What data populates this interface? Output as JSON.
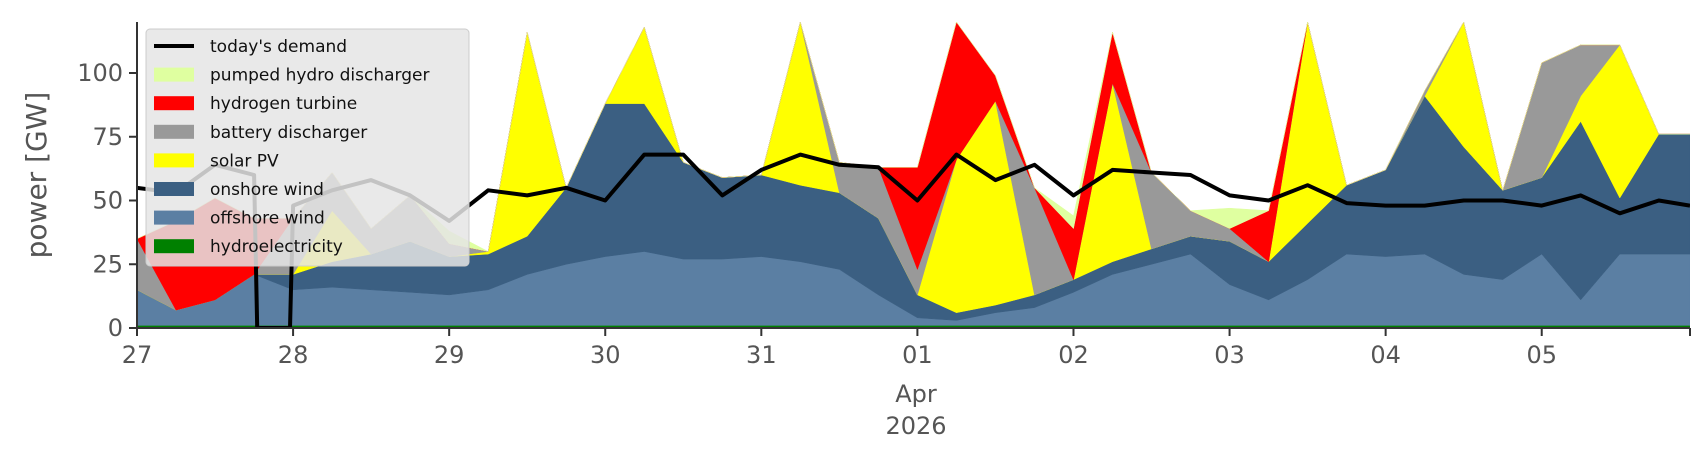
{
  "chart_data": {
    "type": "area",
    "stacked": true,
    "title": "",
    "xlabel": "",
    "ylabel": "power [GW]",
    "ylim": [
      0,
      120
    ],
    "y_ticks": [
      0,
      25,
      50,
      75,
      100
    ],
    "x_range": [
      0,
      9.95
    ],
    "x_ticks": [
      {
        "x": 0,
        "label": "27"
      },
      {
        "x": 1,
        "label": "28"
      },
      {
        "x": 2,
        "label": "29"
      },
      {
        "x": 3,
        "label": "30"
      },
      {
        "x": 4,
        "label": "31"
      },
      {
        "x": 5,
        "label": "01"
      },
      {
        "x": 6,
        "label": "02"
      },
      {
        "x": 7,
        "label": "03"
      },
      {
        "x": 8,
        "label": "04"
      },
      {
        "x": 9,
        "label": "05"
      }
    ],
    "x_tick_sublabels": {
      "month": "Apr",
      "year": "2026",
      "under_tick": "01"
    },
    "grid": false,
    "legend_position": "top-left",
    "x": [
      0,
      0.25,
      0.5,
      0.75,
      1,
      1.25,
      1.5,
      1.75,
      2,
      2.25,
      2.5,
      2.75,
      3,
      3.25,
      3.5,
      3.75,
      4,
      4.25,
      4.5,
      4.75,
      5,
      5.25,
      5.5,
      5.75,
      6,
      6.25,
      6.5,
      6.75,
      7,
      7.25,
      7.5,
      7.75,
      8,
      8.25,
      8.5,
      8.75,
      9,
      9.25,
      9.5,
      9.75,
      9.95
    ],
    "series": [
      {
        "name": "hydroelectricity",
        "color": "#008000",
        "values": [
          1,
          1,
          1,
          1,
          1,
          1,
          1,
          1,
          1,
          1,
          1,
          1,
          1,
          1,
          1,
          1,
          1,
          1,
          1,
          1,
          1,
          1,
          1,
          1,
          1,
          1,
          1,
          1,
          1,
          1,
          1,
          1,
          1,
          1,
          1,
          1,
          1,
          1,
          1,
          1,
          1
        ]
      },
      {
        "name": "offshore wind",
        "color": "#5b7fa3",
        "values": [
          14,
          6,
          10,
          20,
          14,
          15,
          14,
          13,
          12,
          14,
          20,
          24,
          27,
          29,
          26,
          26,
          27,
          25,
          22,
          12,
          3,
          2,
          5,
          7,
          13,
          20,
          24,
          28,
          16,
          10,
          18,
          28,
          27,
          28,
          20,
          18,
          28,
          10,
          28,
          28,
          28
        ]
      },
      {
        "name": "onshore wind",
        "color": "#3b5f82",
        "values": [
          0,
          0,
          0,
          0,
          6,
          10,
          14,
          20,
          15,
          14,
          15,
          30,
          60,
          58,
          38,
          32,
          32,
          30,
          30,
          30,
          9,
          3,
          3,
          5,
          5,
          5,
          6,
          7,
          17,
          15,
          22,
          27,
          34,
          62,
          50,
          35,
          30,
          70,
          22,
          47,
          47
        ]
      },
      {
        "name": "solar PV",
        "color": "#ffff00",
        "values": [
          0,
          0,
          0,
          0,
          0,
          20,
          0,
          0,
          0,
          1,
          80,
          0,
          0,
          30,
          0,
          0,
          0,
          65,
          0,
          0,
          0,
          60,
          80,
          0,
          0,
          70,
          0,
          0,
          0,
          0,
          85,
          0,
          0,
          0,
          60,
          0,
          0,
          10,
          60,
          0,
          0
        ]
      },
      {
        "name": "battery discharger",
        "color": "#999999",
        "values": [
          20,
          0,
          0,
          0,
          22,
          15,
          10,
          18,
          5,
          0,
          0,
          0,
          0,
          0,
          0,
          0,
          0,
          0,
          12,
          20,
          10,
          0,
          0,
          42,
          0,
          0,
          30,
          10,
          5,
          0,
          0,
          0,
          0,
          2,
          0,
          0,
          45,
          20,
          0,
          0,
          0
        ]
      },
      {
        "name": "hydrogen turbine",
        "color": "#ff0000",
        "values": [
          0,
          35,
          40,
          22,
          0,
          0,
          0,
          0,
          0,
          0,
          0,
          0,
          0,
          0,
          0,
          0,
          0,
          0,
          0,
          0,
          40,
          60,
          10,
          0,
          20,
          20,
          0,
          0,
          0,
          20,
          0,
          0,
          0,
          0,
          0,
          0,
          0,
          0,
          0,
          0,
          0
        ]
      },
      {
        "name": "pumped hydro discharger",
        "color": "#dfffa0",
        "values": [
          0,
          0,
          0,
          0,
          0,
          0,
          0,
          0,
          5,
          0,
          0,
          0,
          0,
          0,
          0,
          0,
          0,
          0,
          0,
          0,
          0,
          0,
          0,
          0,
          5,
          0,
          0,
          0,
          8,
          0,
          0,
          0,
          0,
          0,
          0,
          0,
          0,
          0,
          0,
          0,
          0
        ]
      }
    ],
    "demand": {
      "name": "today's demand",
      "color": "#000000",
      "values": [
        55,
        53,
        64,
        60,
        48,
        54,
        58,
        52,
        42,
        54,
        52,
        55,
        50,
        68,
        68,
        52,
        62,
        68,
        64,
        63,
        50,
        68,
        58,
        64,
        52,
        62,
        61,
        60,
        52,
        50,
        56,
        49,
        48,
        48,
        50,
        50,
        48,
        52,
        45,
        50,
        48
      ],
      "gap": {
        "from": 0.75,
        "to": 1.0,
        "value": 0
      }
    },
    "legend": [
      {
        "label": "today's demand",
        "kind": "line",
        "color": "#000000"
      },
      {
        "label": "pumped hydro discharger",
        "kind": "patch",
        "color": "#dfffa0"
      },
      {
        "label": "hydrogen turbine",
        "kind": "patch",
        "color": "#ff0000"
      },
      {
        "label": "battery discharger",
        "kind": "patch",
        "color": "#999999"
      },
      {
        "label": "solar PV",
        "kind": "patch",
        "color": "#ffff00"
      },
      {
        "label": "onshore wind",
        "kind": "patch",
        "color": "#3b5f82"
      },
      {
        "label": "offshore wind",
        "kind": "patch",
        "color": "#5b7fa3"
      },
      {
        "label": "hydroelectricity",
        "kind": "patch",
        "color": "#008000"
      }
    ]
  }
}
